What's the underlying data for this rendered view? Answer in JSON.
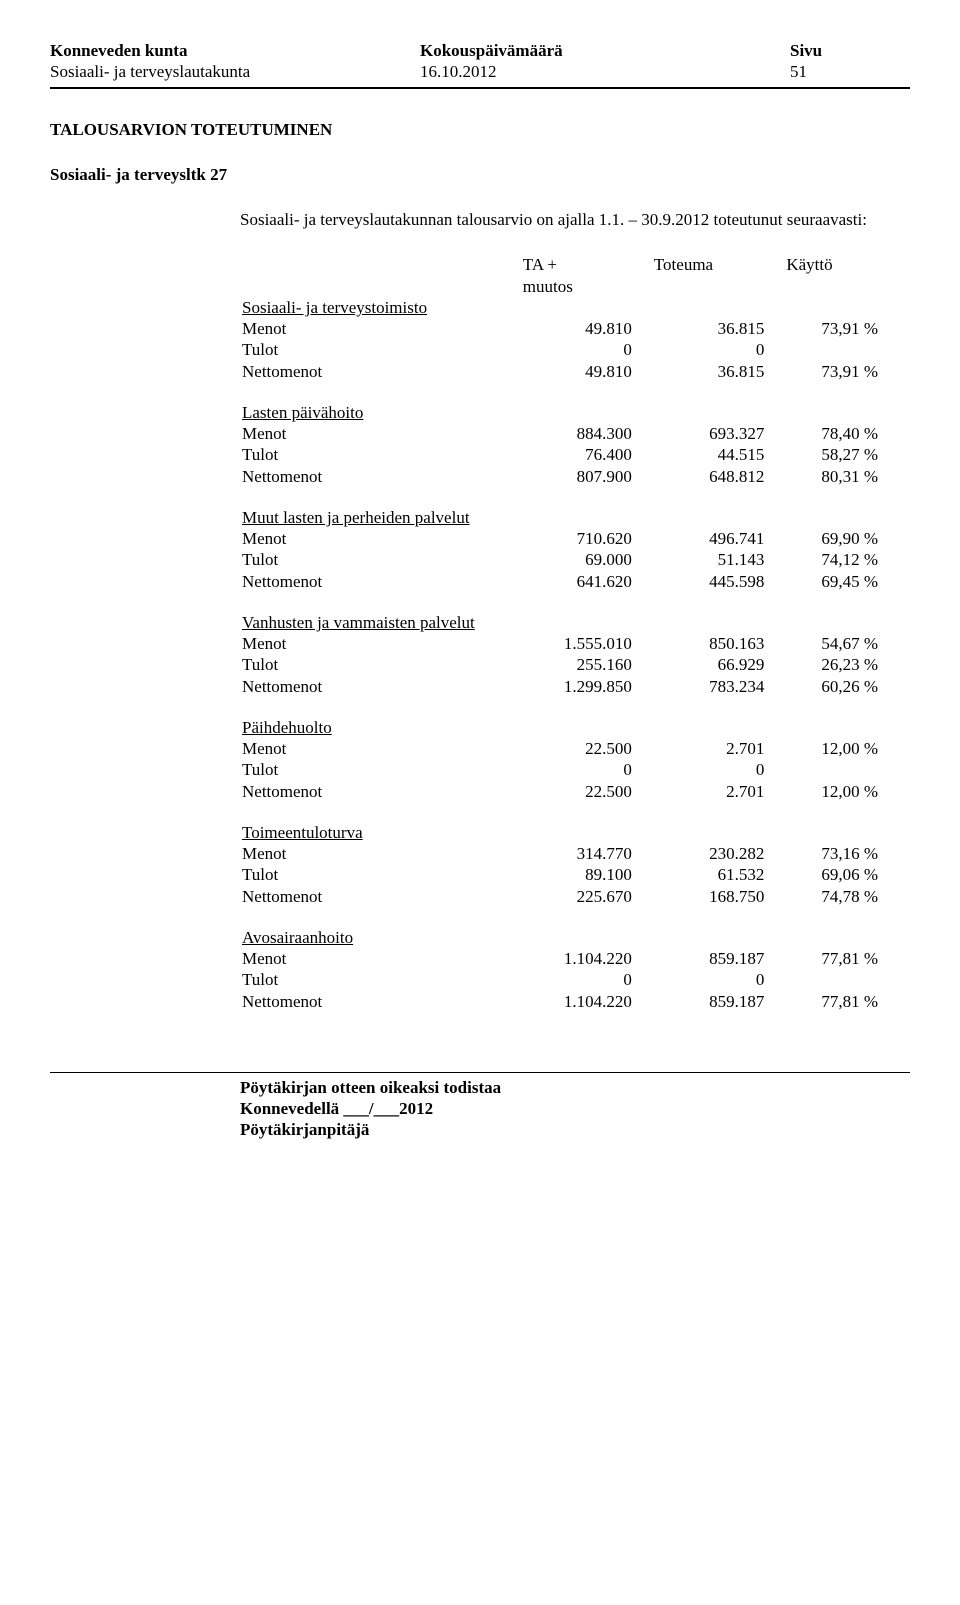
{
  "header": {
    "org": "Konneveden kunta",
    "meeting_label": "Kokouspäivämäärä",
    "page_label": "Sivu",
    "board": "Sosiaali- ja terveyslautakunta",
    "date": "16.10.2012",
    "page_num": "51"
  },
  "title": "TALOUSARVION TOTEUTUMINEN",
  "subhead": "Sosiaali- ja terveysltk 27",
  "intro": "Sosiaali- ja terveyslautakunnan talousarvio on ajalla  1.1. – 30.9.2012 toteutunut seuraavasti:",
  "table": {
    "head": {
      "c1": "TA  +",
      "c1b": "muutos",
      "c2": "Toteuma",
      "c3": "Käyttö"
    },
    "groups": [
      {
        "title": "Sosiaali- ja terveystoimisto",
        "rows": [
          {
            "label": "Menot",
            "a": "49.810",
            "b": "36.815",
            "c": "73,91 %"
          },
          {
            "label": "Tulot",
            "a": "0",
            "b": "0",
            "c": ""
          },
          {
            "label": "Nettomenot",
            "a": "49.810",
            "b": "36.815",
            "c": "73,91 %"
          }
        ]
      },
      {
        "title": "Lasten päivähoito",
        "rows": [
          {
            "label": "Menot",
            "a": "884.300",
            "b": "693.327",
            "c": "78,40 %"
          },
          {
            "label": "Tulot",
            "a": "76.400",
            "b": "44.515",
            "c": "58,27 %"
          },
          {
            "label": "Nettomenot",
            "a": "807.900",
            "b": "648.812",
            "c": "80,31 %"
          }
        ]
      },
      {
        "title": "Muut lasten ja perheiden palvelut",
        "rows": [
          {
            "label": "Menot",
            "a": "710.620",
            "b": "496.741",
            "c": "69,90 %"
          },
          {
            "label": "Tulot",
            "a": "69.000",
            "b": "51.143",
            "c": "74,12 %"
          },
          {
            "label": "Nettomenot",
            "a": "641.620",
            "b": "445.598",
            "c": "69,45 %"
          }
        ]
      },
      {
        "title": "Vanhusten ja vammaisten palvelut",
        "rows": [
          {
            "label": "Menot",
            "a": "1.555.010",
            "b": "850.163",
            "c": "54,67 %"
          },
          {
            "label": "Tulot",
            "a": "255.160",
            "b": "66.929",
            "c": "26,23 %"
          },
          {
            "label": "Nettomenot",
            "a": "1.299.850",
            "b": "783.234",
            "c": "60,26 %"
          }
        ]
      },
      {
        "title": "Päihdehuolto",
        "rows": [
          {
            "label": "Menot",
            "a": "22.500",
            "b": "2.701",
            "c": "12,00 %"
          },
          {
            "label": "Tulot",
            "a": "0",
            "b": "0",
            "c": ""
          },
          {
            "label": "Nettomenot",
            "a": "22.500",
            "b": "2.701",
            "c": "12,00 %"
          }
        ]
      },
      {
        "title": "Toimeentuloturva",
        "rows": [
          {
            "label": "Menot",
            "a": "314.770",
            "b": "230.282",
            "c": "73,16 %"
          },
          {
            "label": "Tulot",
            "a": "89.100",
            "b": "61.532",
            "c": "69,06 %"
          },
          {
            "label": "Nettomenot",
            "a": "225.670",
            "b": "168.750",
            "c": "74,78 %"
          }
        ]
      },
      {
        "title": "Avosairaanhoito",
        "rows": [
          {
            "label": "Menot",
            "a": "1.104.220",
            "b": "859.187",
            "c": "77,81 %"
          },
          {
            "label": "Tulot",
            "a": "0",
            "b": "0",
            "c": ""
          },
          {
            "label": "Nettomenot",
            "a": "1.104.220",
            "b": "859.187",
            "c": "77,81 %"
          }
        ]
      }
    ]
  },
  "footer": {
    "l1": "Pöytäkirjan otteen oikeaksi todistaa",
    "l2": "Konnevedellä ___/___2012",
    "l3": "Pöytäkirjanpitäjä"
  }
}
